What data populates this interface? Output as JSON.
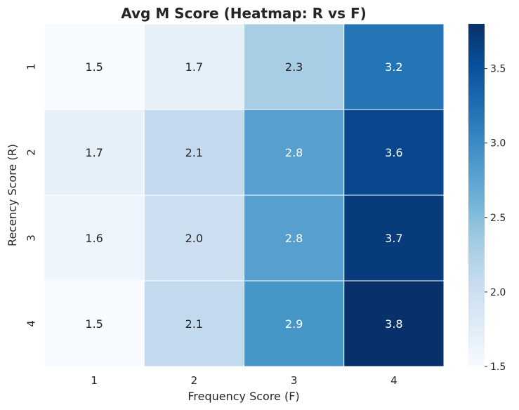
{
  "chart_data": {
    "type": "heatmap",
    "title": "Avg M Score (Heatmap: R vs F)",
    "xlabel": "Frequency Score (F)",
    "ylabel": "Recency Score (R)",
    "x_categories": [
      "1",
      "2",
      "3",
      "4"
    ],
    "y_categories": [
      "1",
      "2",
      "3",
      "4"
    ],
    "values": [
      [
        1.5,
        1.7,
        2.3,
        3.2
      ],
      [
        1.7,
        2.1,
        2.8,
        3.6
      ],
      [
        1.6,
        2.0,
        2.8,
        3.7
      ],
      [
        1.5,
        2.1,
        2.9,
        3.8
      ]
    ],
    "value_labels": [
      [
        "1.5",
        "1.7",
        "2.3",
        "3.2"
      ],
      [
        "1.7",
        "2.1",
        "2.8",
        "3.6"
      ],
      [
        "1.6",
        "2.0",
        "2.8",
        "3.7"
      ],
      [
        "1.5",
        "2.1",
        "2.9",
        "3.8"
      ]
    ],
    "colormap": "Blues",
    "colorbar": {
      "range": [
        1.5,
        3.8
      ],
      "ticks": [
        1.5,
        2.0,
        2.5,
        3.0,
        3.5
      ],
      "tick_labels": [
        "1.5",
        "2.0",
        "2.5",
        "3.0",
        "3.5"
      ]
    },
    "grid": false,
    "cell_border_color": "#ffffff"
  }
}
